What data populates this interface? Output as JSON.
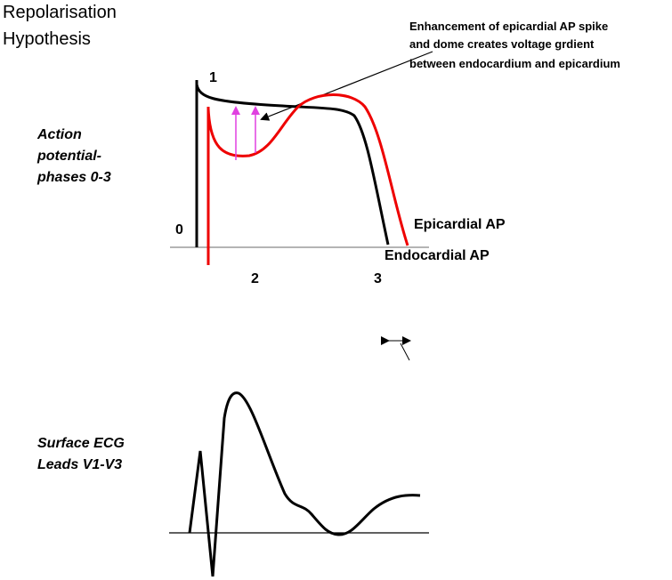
{
  "title": {
    "lines": [
      "Repolarisation",
      "Hypothesis"
    ]
  },
  "annotation": {
    "lines": [
      "Enhancement of epicardial AP spike",
      "and dome creates voltage grdient",
      "between endocardium and epicardium"
    ]
  },
  "action_potential_label": {
    "lines": [
      "Action",
      "potential-",
      "phases 0-3"
    ]
  },
  "phases": [
    "1",
    "0",
    "2",
    "3"
  ],
  "curve_labels": {
    "epicardial": "Epicardial AP",
    "endocardial": "Endocardial AP"
  },
  "ecg_label": {
    "lines": [
      "Surface ECG",
      "Leads V1-V3"
    ]
  }
}
